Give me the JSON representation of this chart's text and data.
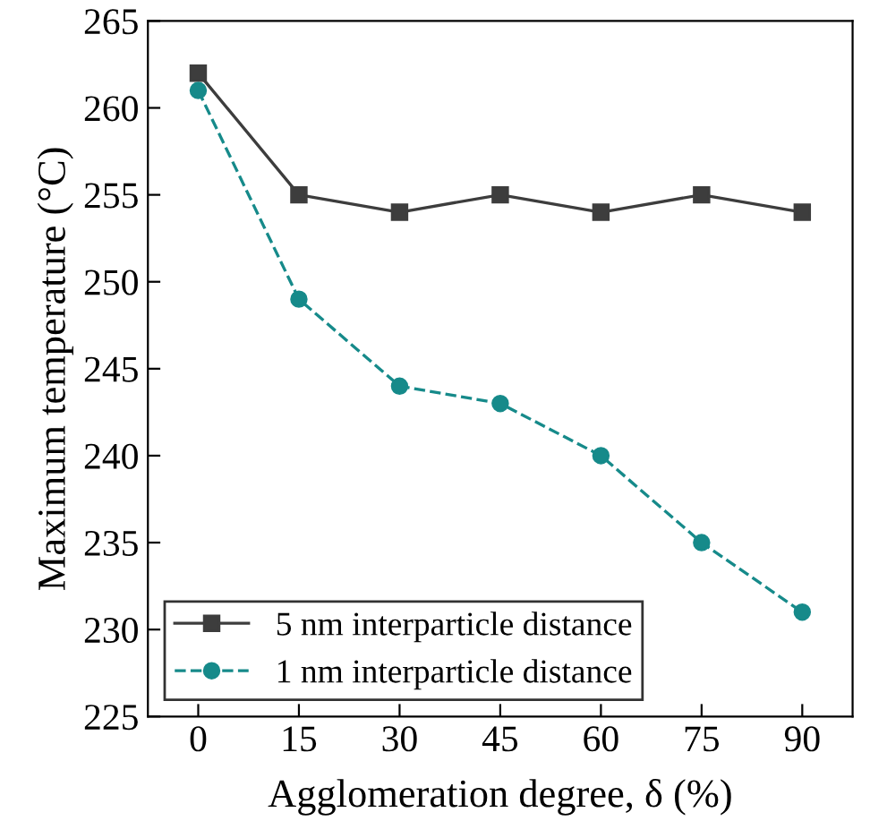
{
  "chart_data": {
    "type": "line",
    "xlabel": "Agglomeration degree, δ (%)",
    "ylabel": "Maximum temperature (°C)",
    "x": [
      0,
      15,
      30,
      45,
      60,
      75,
      90
    ],
    "series": [
      {
        "name": "5 nm interparticle distance",
        "color": "#3d3d3d",
        "values": [
          262,
          255,
          254,
          255,
          254,
          255,
          254
        ],
        "marker": "square",
        "line_style": "solid"
      },
      {
        "name": "1 nm interparticle distance",
        "color": "#168a8a",
        "values": [
          261,
          249,
          244,
          243,
          240,
          235,
          231
        ],
        "marker": "circle",
        "line_style": "dashed"
      }
    ],
    "xlim": [
      -7.5,
      97.5
    ],
    "xticks": [
      0,
      15,
      30,
      45,
      60,
      75,
      90
    ],
    "ylim": [
      225,
      265
    ],
    "yticks": [
      225,
      230,
      235,
      240,
      245,
      250,
      255,
      260,
      265
    ],
    "grid": false,
    "legend": "bottom left"
  }
}
